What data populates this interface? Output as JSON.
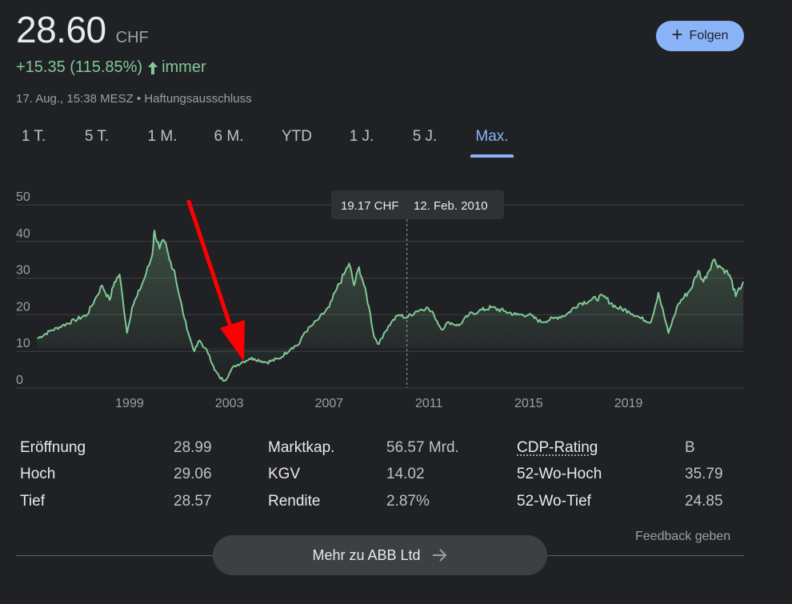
{
  "quote": {
    "price": "28.60",
    "currency": "CHF",
    "change": "+15.35 (115.85%)",
    "period": "immer",
    "timestamp": "17. Aug., 15:38 MESZ • Haftungsausschluss"
  },
  "follow_label": "Folgen",
  "tabs": [
    {
      "label": "1 T."
    },
    {
      "label": "5 T."
    },
    {
      "label": "1 M."
    },
    {
      "label": "6 M."
    },
    {
      "label": "YTD"
    },
    {
      "label": "1 J."
    },
    {
      "label": "5 J."
    },
    {
      "label": "Max.",
      "active": true
    }
  ],
  "tooltip": {
    "price": "19.17 CHF",
    "date": "12. Feb. 2010"
  },
  "colors": {
    "line": "#81c995",
    "accent": "#8ab4f8",
    "annotation_arrow": "#ff0000"
  },
  "chart_data": {
    "type": "line",
    "title": "",
    "xlabel": "",
    "ylabel": "",
    "ylim": [
      0,
      50
    ],
    "yticks": [
      0,
      10,
      20,
      30,
      40,
      50
    ],
    "xlim": [
      1995.25,
      2023.63
    ],
    "xticks": [
      "1999",
      "2003",
      "2007",
      "2011",
      "2015",
      "2019"
    ],
    "grid": true,
    "hover_x": 2010.12,
    "annotation": "red arrow pointing to low in 2003",
    "series": [
      {
        "x": [
          1995.3,
          1995.8,
          1996.3,
          1996.8,
          1997.3,
          1997.6,
          1997.9,
          1998.2,
          1998.4,
          1998.6,
          1998.9,
          1999.1,
          1999.3,
          1999.6,
          1999.9,
          2000.0,
          2000.2,
          2000.4,
          2000.6,
          2000.8,
          2001.0,
          2001.2,
          2001.4,
          2001.6,
          2001.8,
          2002.0,
          2002.2,
          2002.4,
          2002.6,
          2002.8,
          2003.0,
          2003.2,
          2003.5,
          2003.8,
          2004.0,
          2004.5,
          2005.0,
          2005.5,
          2005.8,
          2006.0,
          2006.3,
          2006.6,
          2007.0,
          2007.3,
          2007.6,
          2007.8,
          2008.0,
          2008.2,
          2008.4,
          2008.6,
          2008.8,
          2009.0,
          2009.2,
          2009.5,
          2009.8,
          2010.1,
          2010.5,
          2010.9,
          2011.2,
          2011.5,
          2011.8,
          2012.2,
          2012.6,
          2013.0,
          2013.5,
          2014.0,
          2014.5,
          2015.0,
          2015.5,
          2016.0,
          2016.5,
          2017.0,
          2017.5,
          2018.0,
          2018.5,
          2019.0,
          2019.5,
          2019.9,
          2020.2,
          2020.6,
          2021.0,
          2021.5,
          2021.8,
          2022.0,
          2022.4,
          2022.7,
          2022.9,
          2023.1,
          2023.3,
          2023.6
        ],
        "values": [
          13.5,
          15.5,
          17,
          18.5,
          20,
          24,
          28,
          24,
          29,
          31,
          15,
          22,
          25,
          30,
          36,
          43,
          38,
          40,
          35,
          32,
          25,
          19,
          14,
          10,
          13,
          11,
          9,
          5,
          3,
          2,
          4,
          6,
          7,
          8,
          8,
          7,
          8,
          11,
          12,
          15,
          17,
          19,
          22,
          27,
          31,
          34,
          28,
          33,
          28,
          22,
          14,
          12,
          15,
          18,
          20,
          19.17,
          21,
          22,
          20,
          16,
          18,
          17,
          20,
          21,
          22,
          21,
          20,
          20,
          18,
          19,
          20,
          23,
          24,
          25,
          22,
          21,
          19,
          18,
          26,
          15,
          23,
          27,
          32,
          29,
          35,
          33,
          32,
          30,
          25,
          29
        ]
      }
    ]
  },
  "stats": [
    {
      "label": "Eröffnung",
      "value": "28.99"
    },
    {
      "label": "Hoch",
      "value": "29.06"
    },
    {
      "label": "Tief",
      "value": "28.57"
    },
    {
      "label": "Marktkap.",
      "value": "56.57 Mrd."
    },
    {
      "label": "KGV",
      "value": "14.02"
    },
    {
      "label": "Rendite",
      "value": "2.87%"
    },
    {
      "label": "CDP-Rating",
      "value": "B"
    },
    {
      "label": "52-Wo-Hoch",
      "value": "35.79"
    },
    {
      "label": "52-Wo-Tief",
      "value": "24.85"
    }
  ],
  "feedback_label": "Feedback geben",
  "more_label": "Mehr zu ABB Ltd"
}
